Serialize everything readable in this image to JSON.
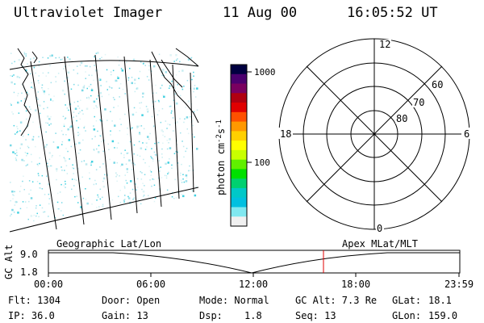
{
  "header": {
    "instrument": "Ultraviolet Imager",
    "date": "11 Aug 00",
    "time": "16:05:52 UT"
  },
  "colorbar": {
    "unit_label": "photon cm-2s-1",
    "unit_main": "photon cm",
    "unit_exp1": "-2",
    "unit_s": "s",
    "unit_exp2": "-1",
    "ticks": [
      "1000",
      "100"
    ],
    "colors": [
      "#000040",
      "#4b006f",
      "#7a0060",
      "#b00010",
      "#e00000",
      "#ff5000",
      "#ff9800",
      "#ffd000",
      "#ffff00",
      "#c8ff00",
      "#60f000",
      "#00e000",
      "#00d070",
      "#00c8c8",
      "#00c0e0",
      "#80e8f0",
      "#f0f0f0"
    ]
  },
  "polar_plot": {
    "mlt_labels": {
      "top": "12",
      "left": "18",
      "right": "6",
      "bottom": "0"
    },
    "lat_labels": [
      "60",
      "70",
      "80"
    ]
  },
  "map_labels": {
    "left": "Geographic Lat/Lon",
    "right": "Apex MLat/MLT"
  },
  "altitude_plot": {
    "ylabel": "GC Alt",
    "yticks": [
      "9.0",
      "1.8"
    ],
    "xticks": [
      "00:00",
      "06:00",
      "12:00",
      "18:00",
      "23:59"
    ],
    "marker_color": "#e00000"
  },
  "footer": {
    "flt": "Flt: 1304",
    "ip": "IP: 36.0",
    "door": "Door: Open",
    "gain": "Gain: 13",
    "mode": "Mode: Normal",
    "dsp_label": "Dsp:",
    "dsp_value": "1.8",
    "gcalt": "GC Alt: 7.3 Re",
    "seq": "Seq: 13",
    "glat_label": "GLat:",
    "glat_value": "18.1",
    "glon_label": "GLon:",
    "glon_value": "159.0"
  }
}
